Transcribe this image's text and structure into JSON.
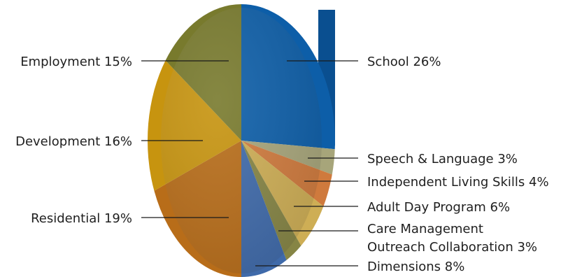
{
  "chart_data": {
    "type": "pie",
    "unit": "%",
    "slices": [
      {
        "label": "School",
        "value": 26,
        "color": "#0d5ea8",
        "text": "School 26%"
      },
      {
        "label": "Speech & Language",
        "value": 3,
        "color": "#a7a57a",
        "text": "Speech & Language 3%"
      },
      {
        "label": "Independent Living Skills",
        "value": 4,
        "color": "#cf7a3d",
        "text": "Independent Living Skills 4%"
      },
      {
        "label": "Adult Day Program",
        "value": 6,
        "color": "#ceae55",
        "text": "Adult Day Program 6%"
      },
      {
        "label": "Care Management Outreach Collaboration",
        "value": 3,
        "color": "#868545",
        "text_lines": [
          "Care Management",
          "Outreach Collaboration 3%"
        ]
      },
      {
        "label": "Dimensions",
        "value": 8,
        "color": "#3f6aaa",
        "text": "Dimensions 8%"
      },
      {
        "label": "Residential",
        "value": 19,
        "color": "#b86d19",
        "text": "Residential 19%"
      },
      {
        "label": "Development",
        "value": 16,
        "color": "#c7940f",
        "text": "Development 16%"
      },
      {
        "label": "Employment",
        "value": 15,
        "color": "#787a2d",
        "text": "Employment 15%"
      }
    ]
  }
}
